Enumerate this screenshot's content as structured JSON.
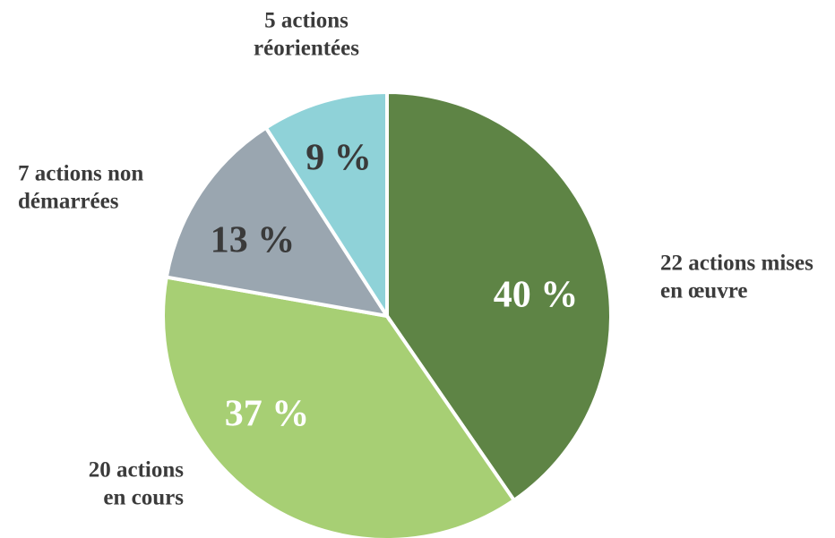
{
  "chart_data": {
    "type": "pie",
    "categories": [
      [
        "22 actions mises",
        "en œuvre"
      ],
      [
        "20 actions",
        "en cours"
      ],
      [
        "7 actions non",
        "démarrées"
      ],
      [
        "5 actions",
        "réorientées"
      ]
    ],
    "values": [
      40,
      37,
      13,
      9
    ],
    "value_labels": [
      "40 %",
      "37 %",
      "13 %",
      "9 %"
    ],
    "colors": [
      "#5e8445",
      "#a7cf74",
      "#9aa6b0",
      "#8fd2d8"
    ]
  }
}
